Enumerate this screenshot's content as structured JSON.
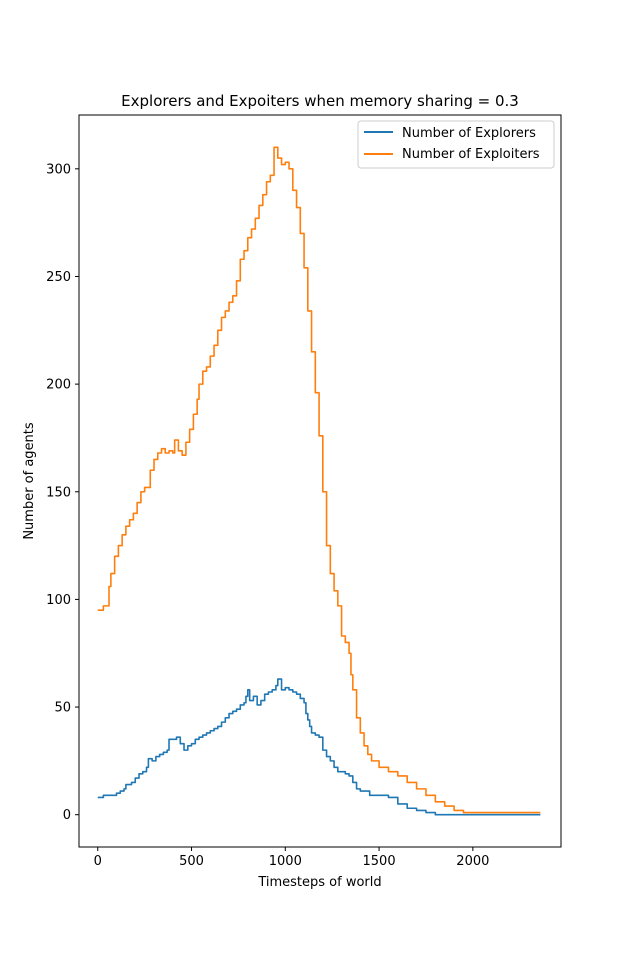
{
  "chart_data": {
    "type": "line",
    "title": "Explorers and Expoiters when memory sharing = 0.3",
    "xlabel": "Timesteps of world",
    "ylabel": "Number of agents",
    "xlim": [
      -100,
      2470
    ],
    "ylim": [
      -15,
      325
    ],
    "xticks": [
      0,
      500,
      1000,
      1500,
      2000
    ],
    "yticks": [
      0,
      50,
      100,
      150,
      200,
      250,
      300
    ],
    "legend_position": "top-right",
    "grid": false,
    "series": [
      {
        "name": "Number of Explorers",
        "color": "#1f77b4",
        "points": [
          [
            0,
            8
          ],
          [
            20,
            8
          ],
          [
            30,
            9
          ],
          [
            80,
            9
          ],
          [
            100,
            10
          ],
          [
            120,
            11
          ],
          [
            140,
            12
          ],
          [
            150,
            14
          ],
          [
            180,
            15
          ],
          [
            200,
            17
          ],
          [
            220,
            19
          ],
          [
            240,
            20
          ],
          [
            260,
            22
          ],
          [
            270,
            26
          ],
          [
            290,
            25
          ],
          [
            310,
            27
          ],
          [
            330,
            28
          ],
          [
            350,
            29
          ],
          [
            370,
            30
          ],
          [
            380,
            35
          ],
          [
            400,
            35
          ],
          [
            420,
            36
          ],
          [
            440,
            33
          ],
          [
            460,
            30
          ],
          [
            480,
            32
          ],
          [
            500,
            33
          ],
          [
            520,
            35
          ],
          [
            540,
            36
          ],
          [
            560,
            37
          ],
          [
            580,
            38
          ],
          [
            600,
            39
          ],
          [
            620,
            40
          ],
          [
            640,
            41
          ],
          [
            660,
            43
          ],
          [
            680,
            45
          ],
          [
            700,
            47
          ],
          [
            720,
            48
          ],
          [
            740,
            49
          ],
          [
            760,
            51
          ],
          [
            780,
            52
          ],
          [
            790,
            55
          ],
          [
            800,
            58
          ],
          [
            810,
            53
          ],
          [
            830,
            55
          ],
          [
            850,
            51
          ],
          [
            870,
            53
          ],
          [
            890,
            56
          ],
          [
            910,
            57
          ],
          [
            930,
            58
          ],
          [
            950,
            60
          ],
          [
            960,
            63
          ],
          [
            980,
            58
          ],
          [
            1000,
            59
          ],
          [
            1020,
            58
          ],
          [
            1040,
            57
          ],
          [
            1060,
            56
          ],
          [
            1080,
            54
          ],
          [
            1100,
            52
          ],
          [
            1110,
            47
          ],
          [
            1120,
            44
          ],
          [
            1130,
            41
          ],
          [
            1140,
            38
          ],
          [
            1160,
            37
          ],
          [
            1180,
            36
          ],
          [
            1200,
            30
          ],
          [
            1220,
            27
          ],
          [
            1240,
            25
          ],
          [
            1260,
            22
          ],
          [
            1280,
            20
          ],
          [
            1300,
            20
          ],
          [
            1320,
            19
          ],
          [
            1340,
            18
          ],
          [
            1360,
            15
          ],
          [
            1380,
            12
          ],
          [
            1400,
            11
          ],
          [
            1450,
            9
          ],
          [
            1500,
            9
          ],
          [
            1550,
            8
          ],
          [
            1600,
            5
          ],
          [
            1650,
            3
          ],
          [
            1700,
            2
          ],
          [
            1750,
            1
          ],
          [
            1800,
            0
          ],
          [
            2000,
            0
          ],
          [
            2200,
            0
          ],
          [
            2360,
            0
          ]
        ]
      },
      {
        "name": "Number of Exploiters",
        "color": "#ff7f0e",
        "points": [
          [
            0,
            95
          ],
          [
            20,
            95
          ],
          [
            30,
            97
          ],
          [
            50,
            97
          ],
          [
            60,
            106
          ],
          [
            70,
            112
          ],
          [
            90,
            120
          ],
          [
            110,
            125
          ],
          [
            130,
            130
          ],
          [
            150,
            134
          ],
          [
            170,
            137
          ],
          [
            190,
            140
          ],
          [
            210,
            145
          ],
          [
            230,
            150
          ],
          [
            250,
            152
          ],
          [
            270,
            152
          ],
          [
            280,
            160
          ],
          [
            300,
            165
          ],
          [
            320,
            168
          ],
          [
            340,
            170
          ],
          [
            360,
            168
          ],
          [
            380,
            169
          ],
          [
            400,
            168
          ],
          [
            410,
            174
          ],
          [
            430,
            169
          ],
          [
            450,
            167
          ],
          [
            470,
            173
          ],
          [
            490,
            179
          ],
          [
            510,
            186
          ],
          [
            530,
            193
          ],
          [
            540,
            200
          ],
          [
            560,
            206
          ],
          [
            580,
            208
          ],
          [
            600,
            213
          ],
          [
            620,
            218
          ],
          [
            640,
            225
          ],
          [
            660,
            231
          ],
          [
            680,
            234
          ],
          [
            700,
            238
          ],
          [
            720,
            241
          ],
          [
            740,
            248
          ],
          [
            760,
            258
          ],
          [
            780,
            262
          ],
          [
            800,
            268
          ],
          [
            820,
            272
          ],
          [
            840,
            277
          ],
          [
            860,
            283
          ],
          [
            880,
            288
          ],
          [
            900,
            294
          ],
          [
            920,
            297
          ],
          [
            940,
            310
          ],
          [
            960,
            305
          ],
          [
            980,
            302
          ],
          [
            1000,
            303
          ],
          [
            1020,
            300
          ],
          [
            1040,
            290
          ],
          [
            1060,
            282
          ],
          [
            1080,
            270
          ],
          [
            1100,
            254
          ],
          [
            1120,
            234
          ],
          [
            1140,
            215
          ],
          [
            1160,
            196
          ],
          [
            1180,
            176
          ],
          [
            1200,
            150
          ],
          [
            1220,
            125
          ],
          [
            1240,
            112
          ],
          [
            1260,
            104
          ],
          [
            1280,
            97
          ],
          [
            1300,
            83
          ],
          [
            1320,
            80
          ],
          [
            1340,
            75
          ],
          [
            1350,
            65
          ],
          [
            1360,
            58
          ],
          [
            1380,
            45
          ],
          [
            1400,
            38
          ],
          [
            1420,
            32
          ],
          [
            1440,
            28
          ],
          [
            1460,
            25
          ],
          [
            1500,
            22
          ],
          [
            1550,
            20
          ],
          [
            1600,
            18
          ],
          [
            1650,
            15
          ],
          [
            1700,
            12
          ],
          [
            1750,
            9
          ],
          [
            1800,
            6
          ],
          [
            1850,
            4
          ],
          [
            1900,
            2
          ],
          [
            1950,
            1
          ],
          [
            2000,
            1
          ],
          [
            2200,
            1
          ],
          [
            2360,
            1
          ]
        ]
      }
    ]
  }
}
